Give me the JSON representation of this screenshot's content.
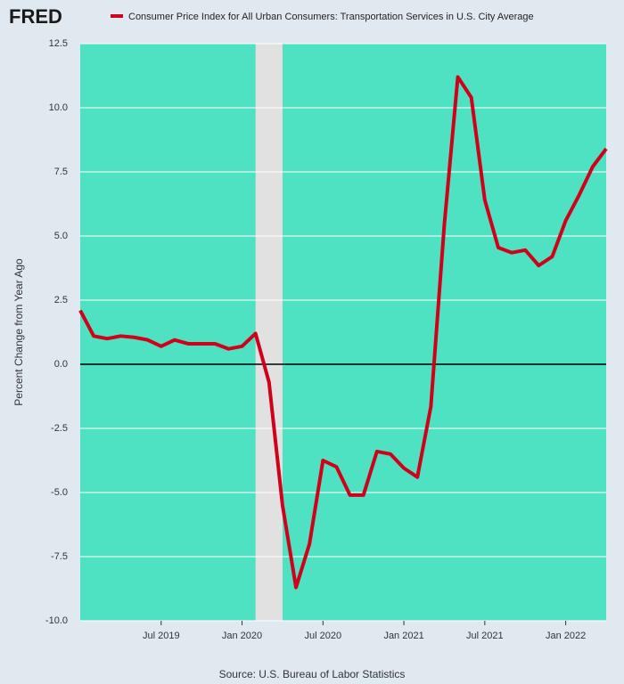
{
  "chart_data": {
    "type": "line",
    "logo": "FRED",
    "ylabel": "Percent Change from Year Ago",
    "source": "Source: U.S. Bureau of Labor Statistics",
    "background": "#4fe2c2",
    "grid": true,
    "zero_line": true,
    "recessions": [
      {
        "start": "2020-02",
        "end": "2020-04",
        "color": "#e1e1e1"
      }
    ],
    "x": [
      "2019-01",
      "2019-02",
      "2019-03",
      "2019-04",
      "2019-05",
      "2019-06",
      "2019-07",
      "2019-08",
      "2019-09",
      "2019-10",
      "2019-11",
      "2019-12",
      "2020-01",
      "2020-02",
      "2020-03",
      "2020-04",
      "2020-05",
      "2020-06",
      "2020-07",
      "2020-08",
      "2020-09",
      "2020-10",
      "2020-11",
      "2020-12",
      "2021-01",
      "2021-02",
      "2021-03",
      "2021-04",
      "2021-05",
      "2021-06",
      "2021-07",
      "2021-08",
      "2021-09",
      "2021-10",
      "2021-11",
      "2021-12",
      "2022-01",
      "2022-02",
      "2022-03",
      "2022-04"
    ],
    "series": [
      {
        "name": "Consumer Price Index for All Urban Consumers: Transportation Services in U.S. City Average",
        "color": "#d0021b",
        "values": [
          2.1,
          1.1,
          1.0,
          1.1,
          1.05,
          0.95,
          0.7,
          0.95,
          0.8,
          0.8,
          0.8,
          0.6,
          0.7,
          1.2,
          -0.7,
          -5.5,
          -8.7,
          -7.0,
          -3.75,
          -4.0,
          -5.1,
          -5.1,
          -3.4,
          -3.5,
          -4.05,
          -4.4,
          -1.65,
          5.45,
          11.2,
          10.4,
          6.4,
          4.55,
          4.35,
          4.45,
          3.85,
          4.2,
          5.6,
          6.6,
          7.7,
          8.4
        ]
      }
    ],
    "xlim": [
      "2019-01",
      "2022-04"
    ],
    "xticks": [
      {
        "value": "2019-07",
        "label": "Jul 2019"
      },
      {
        "value": "2020-01",
        "label": "Jan 2020"
      },
      {
        "value": "2020-07",
        "label": "Jul 2020"
      },
      {
        "value": "2021-01",
        "label": "Jan 2021"
      },
      {
        "value": "2021-07",
        "label": "Jul 2021"
      },
      {
        "value": "2022-01",
        "label": "Jan 2022"
      }
    ],
    "ylim": [
      -10,
      12.5
    ],
    "yticks": [
      {
        "value": -10,
        "label": "-10.0"
      },
      -7.5,
      {
        "value": -5,
        "label": "-5.0"
      },
      -2.5,
      {
        "value": 0,
        "label": "0.0"
      },
      2.5,
      {
        "value": 5,
        "label": "5.0"
      },
      7.5,
      {
        "value": 10,
        "label": "10.0"
      },
      12.5
    ]
  }
}
